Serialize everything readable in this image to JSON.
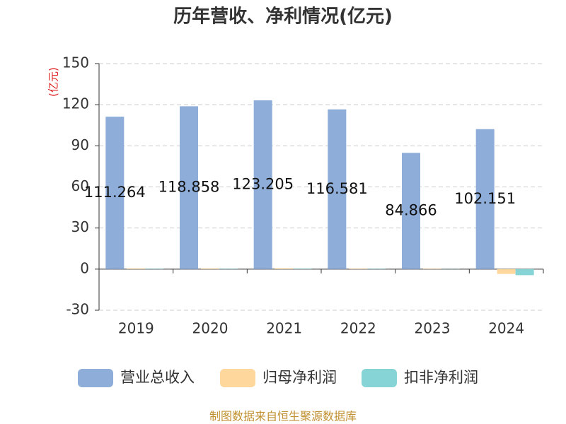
{
  "chart_data": {
    "type": "bar",
    "title": "历年营收、净利情况(亿元)",
    "y_label": "(亿元)",
    "categories": [
      "2019",
      "2020",
      "2021",
      "2022",
      "2023",
      "2024"
    ],
    "series": [
      {
        "name": "营业总收入",
        "color": "#8eadd9",
        "values": [
          111.264,
          118.858,
          123.205,
          116.581,
          84.866,
          102.151
        ]
      },
      {
        "name": "归母净利润",
        "color": "#fdd79b",
        "values": [
          0.5,
          0.5,
          0.6,
          0.4,
          0.3,
          -3.5
        ]
      },
      {
        "name": "扣非净利润",
        "color": "#86d4d6",
        "values": [
          0.3,
          0.3,
          0.4,
          0.3,
          0.1,
          -4.4
        ]
      }
    ],
    "ylim": [
      -30,
      150
    ],
    "yticks": [
      -30,
      0,
      30,
      60,
      90,
      120,
      150
    ],
    "grid": true,
    "source": "制图数据来自恒生聚源数据库"
  }
}
